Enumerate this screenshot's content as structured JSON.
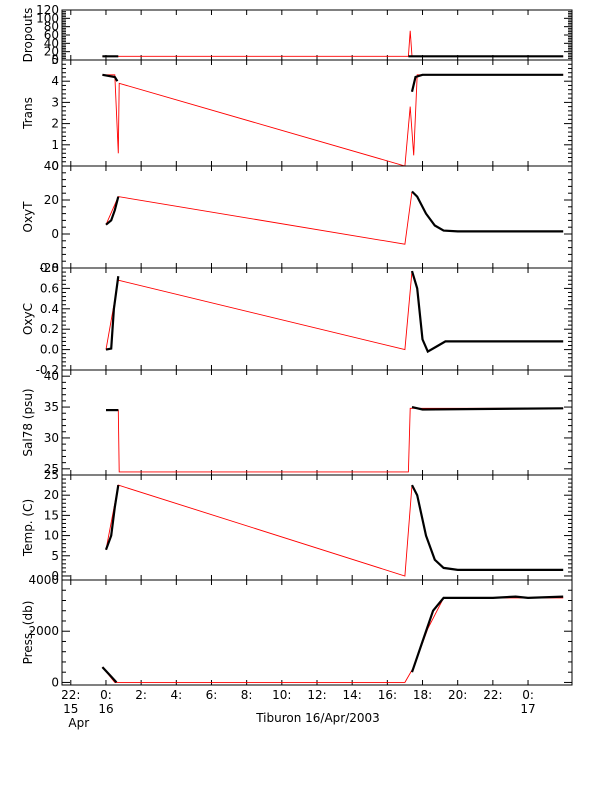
{
  "caption": "Tiburon 16/Apr/2003",
  "colors": {
    "trace": "#ff0000",
    "data": "#000000",
    "frame": "#000000"
  },
  "x_axis": {
    "range_hours": [
      -2.5,
      26.5
    ],
    "ticks": [
      {
        "hour": -2,
        "line1": "22:",
        "line2": "15",
        "line3": "Apr"
      },
      {
        "hour": 0,
        "line1": "0:",
        "line2": "16",
        "line3": ""
      },
      {
        "hour": 2,
        "line1": "2:",
        "line2": "",
        "line3": ""
      },
      {
        "hour": 4,
        "line1": "4:",
        "line2": "",
        "line3": ""
      },
      {
        "hour": 6,
        "line1": "6:",
        "line2": "",
        "line3": ""
      },
      {
        "hour": 8,
        "line1": "8:",
        "line2": "",
        "line3": ""
      },
      {
        "hour": 10,
        "line1": "10:",
        "line2": "",
        "line3": ""
      },
      {
        "hour": 12,
        "line1": "12:",
        "line2": "",
        "line3": ""
      },
      {
        "hour": 14,
        "line1": "14:",
        "line2": "",
        "line3": ""
      },
      {
        "hour": 16,
        "line1": "16:",
        "line2": "",
        "line3": ""
      },
      {
        "hour": 18,
        "line1": "18:",
        "line2": "",
        "line3": ""
      },
      {
        "hour": 20,
        "line1": "20:",
        "line2": "",
        "line3": ""
      },
      {
        "hour": 22,
        "line1": "22:",
        "line2": "",
        "line3": ""
      },
      {
        "hour": 24,
        "line1": "0:",
        "line2": "17",
        "line3": ""
      }
    ]
  },
  "chart_data": [
    {
      "type": "line",
      "ylabel": "Dropouts",
      "ylim": [
        0,
        120
      ],
      "yticks": [
        0,
        20,
        40,
        60,
        80,
        100,
        120
      ],
      "ytick_labels": [
        "0",
        "20",
        "40",
        "60",
        "80",
        "100",
        "120"
      ],
      "series": [
        {
          "color": "#ff0000",
          "points": [
            [
              -0.2,
              9
            ],
            [
              0.7,
              9
            ],
            [
              17.2,
              9
            ],
            [
              17.3,
              70
            ],
            [
              17.4,
              9
            ],
            [
              26,
              9
            ]
          ]
        },
        {
          "color": "#000000",
          "points": [
            [
              -0.2,
              9
            ],
            [
              0.7,
              9
            ]
          ]
        },
        {
          "color": "#000000",
          "points": [
            [
              17.2,
              9
            ],
            [
              26,
              9
            ]
          ]
        }
      ]
    },
    {
      "type": "line",
      "ylabel": "Trans",
      "ylim": [
        0,
        5
      ],
      "yticks": [
        0,
        1,
        2,
        3,
        4,
        5
      ],
      "ytick_labels": [
        "0",
        "1",
        "2",
        "3",
        "4",
        "5"
      ],
      "series": [
        {
          "color": "#ff0000",
          "points": [
            [
              -0.2,
              4.3
            ],
            [
              0.5,
              4.3
            ],
            [
              0.7,
              0.6
            ],
            [
              0.75,
              3.9
            ],
            [
              17.0,
              0.0
            ],
            [
              17.3,
              2.8
            ],
            [
              17.5,
              0.5
            ],
            [
              17.7,
              4.3
            ],
            [
              26,
              4.3
            ]
          ]
        },
        {
          "color": "#000000",
          "points": [
            [
              -0.2,
              4.3
            ],
            [
              0.5,
              4.2
            ],
            [
              0.65,
              4.0
            ]
          ]
        },
        {
          "color": "#000000",
          "points": [
            [
              17.4,
              3.5
            ],
            [
              17.6,
              4.2
            ],
            [
              18.0,
              4.3
            ],
            [
              26,
              4.3
            ]
          ]
        }
      ]
    },
    {
      "type": "line",
      "ylabel": "OxyT",
      "ylim": [
        -20,
        40
      ],
      "yticks": [
        -20,
        0,
        20,
        40
      ],
      "ytick_labels": [
        "-20",
        "0",
        "20",
        "40"
      ],
      "series": [
        {
          "color": "#ff0000",
          "points": [
            [
              0,
              5.5
            ],
            [
              0.7,
              22
            ],
            [
              17.0,
              -6
            ],
            [
              17.4,
              25
            ]
          ]
        },
        {
          "color": "#000000",
          "points": [
            [
              0,
              5.5
            ],
            [
              0.3,
              8
            ],
            [
              0.5,
              14
            ],
            [
              0.7,
              22
            ]
          ]
        },
        {
          "color": "#000000",
          "points": [
            [
              17.4,
              25
            ],
            [
              17.7,
              22
            ],
            [
              18.2,
              12
            ],
            [
              18.7,
              5
            ],
            [
              19.2,
              2
            ],
            [
              20,
              1.5
            ],
            [
              26,
              1.5
            ]
          ]
        }
      ]
    },
    {
      "type": "line",
      "ylabel": "OxyC",
      "ylim": [
        -0.2,
        0.8
      ],
      "yticks": [
        -0.2,
        0.0,
        0.2,
        0.4,
        0.6,
        0.8
      ],
      "ytick_labels": [
        "-0.2",
        "0.0",
        "0.2",
        "0.4",
        "0.6",
        "0.8"
      ],
      "series": [
        {
          "color": "#ff0000",
          "points": [
            [
              0,
              0.0
            ],
            [
              0.7,
              0.68
            ],
            [
              17.0,
              0.0
            ],
            [
              17.4,
              0.77
            ]
          ]
        },
        {
          "color": "#000000",
          "points": [
            [
              0,
              0.0
            ],
            [
              0.3,
              0.01
            ],
            [
              0.45,
              0.4
            ],
            [
              0.7,
              0.72
            ]
          ]
        },
        {
          "color": "#000000",
          "points": [
            [
              17.4,
              0.77
            ],
            [
              17.7,
              0.6
            ],
            [
              18.0,
              0.1
            ],
            [
              18.3,
              -0.02
            ],
            [
              18.8,
              0.03
            ],
            [
              19.3,
              0.08
            ],
            [
              26,
              0.08
            ]
          ]
        }
      ]
    },
    {
      "type": "line",
      "ylabel": "Sal78 (psu)",
      "ylim": [
        24,
        41
      ],
      "yticks": [
        25,
        30,
        35,
        40
      ],
      "ytick_labels": [
        "25",
        "30",
        "35",
        "40"
      ],
      "series": [
        {
          "color": "#ff0000",
          "points": [
            [
              0,
              34.5
            ],
            [
              0.7,
              34.5
            ],
            [
              0.75,
              24.5
            ],
            [
              17.2,
              24.5
            ],
            [
              17.3,
              34.8
            ],
            [
              26,
              34.8
            ]
          ]
        },
        {
          "color": "#000000",
          "points": [
            [
              0,
              34.5
            ],
            [
              0.7,
              34.5
            ]
          ]
        },
        {
          "color": "#000000",
          "points": [
            [
              17.4,
              35
            ],
            [
              18,
              34.6
            ],
            [
              26,
              34.8
            ]
          ]
        }
      ]
    },
    {
      "type": "line",
      "ylabel": "Temp. (C)",
      "ylim": [
        -1,
        25
      ],
      "yticks": [
        0,
        5,
        10,
        15,
        20,
        25
      ],
      "ytick_labels": [
        "0",
        "5",
        "10",
        "15",
        "20",
        "25"
      ],
      "series": [
        {
          "color": "#ff0000",
          "points": [
            [
              0,
              6.5
            ],
            [
              0.7,
              22.5
            ],
            [
              17.0,
              0
            ],
            [
              17.4,
              22.5
            ]
          ]
        },
        {
          "color": "#000000",
          "points": [
            [
              0,
              6.5
            ],
            [
              0.3,
              10
            ],
            [
              0.5,
              17
            ],
            [
              0.7,
              22.5
            ]
          ]
        },
        {
          "color": "#000000",
          "points": [
            [
              17.4,
              22.5
            ],
            [
              17.7,
              20
            ],
            [
              18.2,
              10
            ],
            [
              18.7,
              4
            ],
            [
              19.2,
              2
            ],
            [
              20,
              1.5
            ],
            [
              26,
              1.5
            ]
          ]
        }
      ]
    },
    {
      "type": "line",
      "ylabel": "Press. (db)",
      "ylim": [
        -100,
        4000
      ],
      "yticks": [
        0,
        2000,
        4000
      ],
      "ytick_labels": [
        "0",
        "2000",
        "4000"
      ],
      "series": [
        {
          "color": "#ff0000",
          "points": [
            [
              -0.2,
              600
            ],
            [
              0.5,
              0
            ],
            [
              0.7,
              0
            ],
            [
              17.0,
              0
            ],
            [
              17.5,
              600
            ],
            [
              18.3,
              2100
            ],
            [
              19.2,
              3300
            ],
            [
              26,
              3300
            ]
          ]
        },
        {
          "color": "#000000",
          "points": [
            [
              -0.2,
              600
            ],
            [
              0.2,
              300
            ],
            [
              0.6,
              0
            ]
          ]
        },
        {
          "color": "#000000",
          "points": [
            [
              17.4,
              400
            ],
            [
              18.0,
              1600
            ],
            [
              18.6,
              2800
            ],
            [
              19.2,
              3300
            ],
            [
              22,
              3300
            ],
            [
              23.3,
              3350
            ],
            [
              24,
              3300
            ],
            [
              26,
              3350
            ]
          ]
        }
      ]
    }
  ]
}
